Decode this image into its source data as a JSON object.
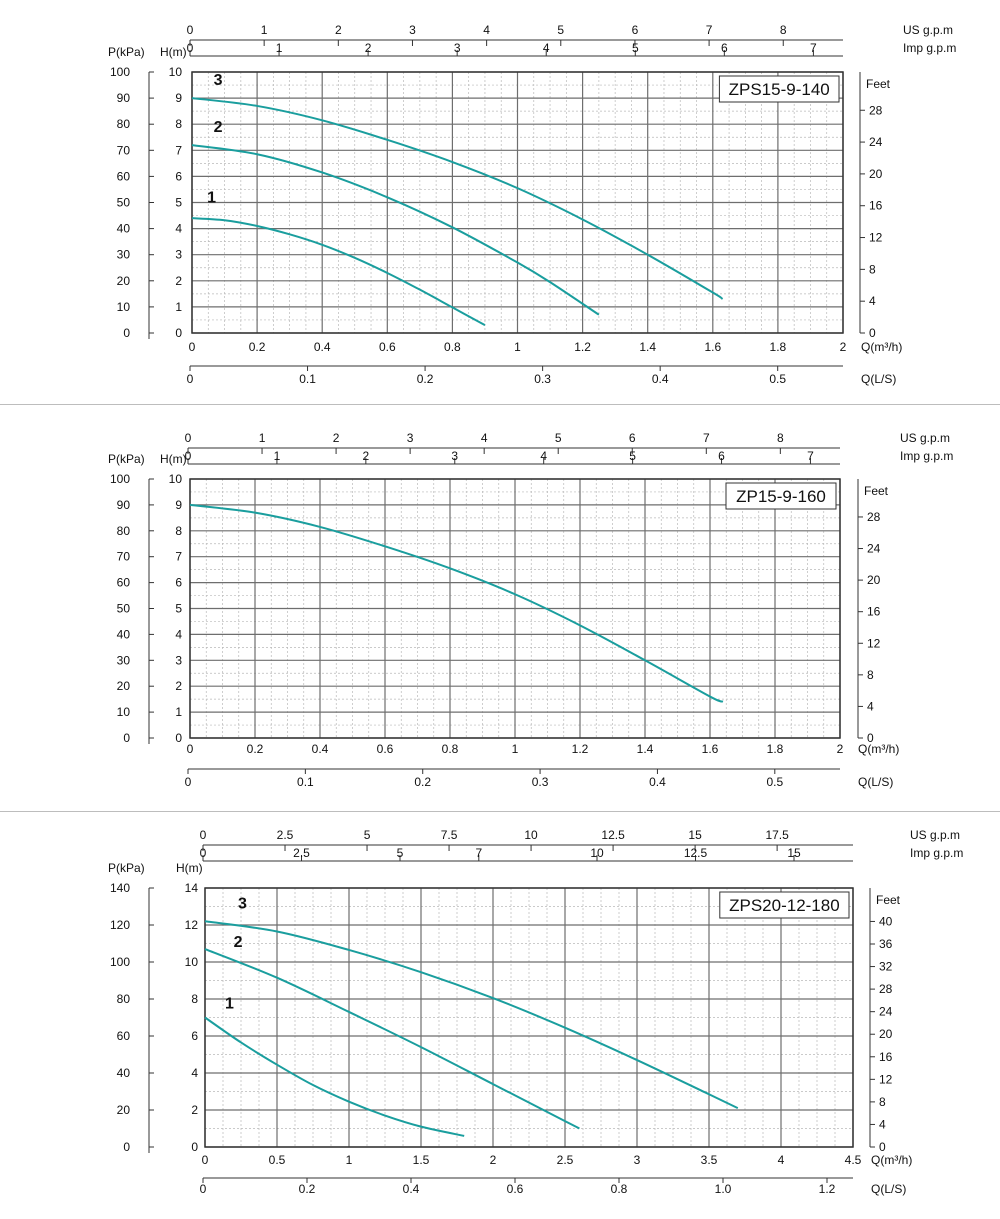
{
  "chart_data": [
    {
      "type": "line",
      "model_label": "ZPS15-9-140",
      "xlabel": "Q(m³/h)",
      "xlim": [
        0,
        2
      ],
      "x_ticks": [
        "0",
        "0.2",
        "0.4",
        "0.6",
        "0.8",
        "1",
        "1.2",
        "1.4",
        "1.6",
        "1.8",
        "2"
      ],
      "ylabel_head": "H(m)",
      "ylim": [
        0,
        10
      ],
      "y_ticks": [
        "0",
        "1",
        "2",
        "3",
        "4",
        "5",
        "6",
        "7",
        "8",
        "9",
        "10"
      ],
      "pressure_label": "P(kPa)",
      "pressure_ticks": [
        "0",
        "10",
        "20",
        "30",
        "40",
        "50",
        "60",
        "70",
        "80",
        "90",
        "100"
      ],
      "feet_label": "Feet",
      "feet_ticks": [
        {
          "label": "0",
          "value": 0
        },
        {
          "label": "4",
          "value": 4
        },
        {
          "label": "8",
          "value": 8
        },
        {
          "label": "12",
          "value": 12
        },
        {
          "label": "16",
          "value": 16
        },
        {
          "label": "20",
          "value": 20
        },
        {
          "label": "24",
          "value": 24
        },
        {
          "label": "28",
          "value": 28
        }
      ],
      "us_label": "US  g.p.m",
      "us_ticks": [
        {
          "label": "0",
          "value": 0
        },
        {
          "label": "1",
          "value": 1
        },
        {
          "label": "2",
          "value": 2
        },
        {
          "label": "3",
          "value": 3
        },
        {
          "label": "4",
          "value": 4
        },
        {
          "label": "5",
          "value": 5
        },
        {
          "label": "6",
          "value": 6
        },
        {
          "label": "7",
          "value": 7
        },
        {
          "label": "8",
          "value": 8
        }
      ],
      "imp_label": "Imp  g.p.m",
      "imp_ticks": [
        {
          "label": "0",
          "value": 0
        },
        {
          "label": "1",
          "value": 1
        },
        {
          "label": "2",
          "value": 2
        },
        {
          "label": "3",
          "value": 3
        },
        {
          "label": "4",
          "value": 4
        },
        {
          "label": "5",
          "value": 5
        },
        {
          "label": "6",
          "value": 6
        },
        {
          "label": "7",
          "value": 7
        }
      ],
      "ls_label": "Q(L/S)",
      "ls_ticks": [
        {
          "label": "0",
          "value": 0
        },
        {
          "label": "0.1",
          "value": 0.1
        },
        {
          "label": "0.2",
          "value": 0.2
        },
        {
          "label": "0.3",
          "value": 0.3
        },
        {
          "label": "0.4",
          "value": 0.4
        },
        {
          "label": "0.5",
          "value": 0.5
        }
      ],
      "series": [
        {
          "name": "1",
          "label_pos": [
            0.06,
            5.0
          ],
          "x": [
            0,
            0.1,
            0.2,
            0.3,
            0.4,
            0.5,
            0.6,
            0.7,
            0.8,
            0.9
          ],
          "y": [
            4.4,
            4.32,
            4.1,
            3.78,
            3.38,
            2.88,
            2.3,
            1.66,
            0.98,
            0.3
          ]
        },
        {
          "name": "2",
          "label_pos": [
            0.08,
            7.7
          ],
          "x": [
            0,
            0.2,
            0.4,
            0.6,
            0.8,
            1.0,
            1.1,
            1.25
          ],
          "y": [
            7.2,
            6.85,
            6.15,
            5.2,
            4.05,
            2.7,
            1.95,
            0.7
          ]
        },
        {
          "name": "3",
          "label_pos": [
            0.08,
            9.5
          ],
          "x": [
            0,
            0.2,
            0.4,
            0.6,
            0.8,
            1.0,
            1.2,
            1.4,
            1.6,
            1.63
          ],
          "y": [
            9.0,
            8.7,
            8.15,
            7.4,
            6.55,
            5.55,
            4.35,
            3.0,
            1.55,
            1.3
          ]
        }
      ]
    },
    {
      "type": "line",
      "model_label": "ZP15-9-160",
      "xlabel": "Q(m³/h)",
      "xlim": [
        0,
        2
      ],
      "x_ticks": [
        "0",
        "0.2",
        "0.4",
        "0.6",
        "0.8",
        "1",
        "1.2",
        "1.4",
        "1.6",
        "1.8",
        "2"
      ],
      "ylabel_head": "H(m)",
      "ylim": [
        0,
        10
      ],
      "y_ticks": [
        "0",
        "1",
        "2",
        "3",
        "4",
        "5",
        "6",
        "7",
        "8",
        "9",
        "10"
      ],
      "pressure_label": "P(kPa)",
      "pressure_ticks": [
        "0",
        "10",
        "20",
        "30",
        "40",
        "50",
        "60",
        "70",
        "80",
        "90",
        "100"
      ],
      "feet_label": "Feet",
      "feet_ticks": [
        {
          "label": "0",
          "value": 0
        },
        {
          "label": "4",
          "value": 4
        },
        {
          "label": "8",
          "value": 8
        },
        {
          "label": "12",
          "value": 12
        },
        {
          "label": "16",
          "value": 16
        },
        {
          "label": "20",
          "value": 20
        },
        {
          "label": "24",
          "value": 24
        },
        {
          "label": "28",
          "value": 28
        }
      ],
      "us_label": "US  g.p.m",
      "us_ticks": [
        {
          "label": "0",
          "value": 0
        },
        {
          "label": "1",
          "value": 1
        },
        {
          "label": "2",
          "value": 2
        },
        {
          "label": "3",
          "value": 3
        },
        {
          "label": "4",
          "value": 4
        },
        {
          "label": "5",
          "value": 5
        },
        {
          "label": "6",
          "value": 6
        },
        {
          "label": "7",
          "value": 7
        },
        {
          "label": "8",
          "value": 8
        }
      ],
      "imp_label": "Imp  g.p.m",
      "imp_ticks": [
        {
          "label": "0",
          "value": 0
        },
        {
          "label": "1",
          "value": 1
        },
        {
          "label": "2",
          "value": 2
        },
        {
          "label": "3",
          "value": 3
        },
        {
          "label": "4",
          "value": 4
        },
        {
          "label": "5",
          "value": 5
        },
        {
          "label": "6",
          "value": 6
        },
        {
          "label": "7",
          "value": 7
        }
      ],
      "ls_label": "Q(L/S)",
      "ls_ticks": [
        {
          "label": "0",
          "value": 0
        },
        {
          "label": "0.1",
          "value": 0.1
        },
        {
          "label": "0.2",
          "value": 0.2
        },
        {
          "label": "0.3",
          "value": 0.3
        },
        {
          "label": "0.4",
          "value": 0.4
        },
        {
          "label": "0.5",
          "value": 0.5
        }
      ],
      "series": [
        {
          "x": [
            0,
            0.2,
            0.4,
            0.6,
            0.8,
            1.0,
            1.2,
            1.4,
            1.6,
            1.64
          ],
          "y": [
            9.0,
            8.7,
            8.15,
            7.4,
            6.55,
            5.55,
            4.35,
            3.0,
            1.6,
            1.4
          ]
        }
      ]
    },
    {
      "type": "line",
      "model_label": "ZPS20-12-180",
      "xlabel": "Q(m³/h)",
      "xlim": [
        0,
        4.5
      ],
      "x_ticks": [
        "0",
        "0.5",
        "1",
        "1.5",
        "2",
        "2.5",
        "3",
        "3.5",
        "4",
        "4.5"
      ],
      "ylabel_head": "H(m)",
      "ylim": [
        0,
        14
      ],
      "y_ticks": [
        "0",
        "2",
        "4",
        "6",
        "8",
        "10",
        "12",
        "14"
      ],
      "pressure_label": "P(kPa)",
      "pressure_ticks": [
        "0",
        "20",
        "40",
        "60",
        "80",
        "100",
        "120",
        "140"
      ],
      "feet_label": "Feet",
      "feet_ticks": [
        {
          "label": "0",
          "value": 0
        },
        {
          "label": "4",
          "value": 4
        },
        {
          "label": "8",
          "value": 8
        },
        {
          "label": "12",
          "value": 12
        },
        {
          "label": "16",
          "value": 16
        },
        {
          "label": "20",
          "value": 20
        },
        {
          "label": "24",
          "value": 24
        },
        {
          "label": "28",
          "value": 28
        },
        {
          "label": "32",
          "value": 32
        },
        {
          "label": "36",
          "value": 36
        },
        {
          "label": "40",
          "value": 40
        }
      ],
      "us_label": "US  g.p.m",
      "us_ticks": [
        {
          "label": "0",
          "value": 0
        },
        {
          "label": "2.5",
          "value": 2.5
        },
        {
          "label": "5",
          "value": 5
        },
        {
          "label": "7.5",
          "value": 7.5
        },
        {
          "label": "10",
          "value": 10
        },
        {
          "label": "12.5",
          "value": 12.5
        },
        {
          "label": "15",
          "value": 15
        },
        {
          "label": "17.5",
          "value": 17.5
        }
      ],
      "imp_label": "Imp  g.p.m",
      "imp_ticks": [
        {
          "label": "0",
          "value": 0
        },
        {
          "label": "2.5",
          "value": 2.5
        },
        {
          "label": "5",
          "value": 5
        },
        {
          "label": "7",
          "value": 7
        },
        {
          "label": "10",
          "value": 10
        },
        {
          "label": "12.5",
          "value": 12.5
        },
        {
          "label": "15",
          "value": 15
        }
      ],
      "ls_label": "Q(L/S)",
      "ls_ticks": [
        {
          "label": "0",
          "value": 0
        },
        {
          "label": "0.2",
          "value": 0.2
        },
        {
          "label": "0.4",
          "value": 0.4
        },
        {
          "label": "0.6",
          "value": 0.6
        },
        {
          "label": "0.8",
          "value": 0.8
        },
        {
          "label": "1.0",
          "value": 1.0
        },
        {
          "label": "1.2",
          "value": 1.2
        }
      ],
      "series": [
        {
          "name": "1",
          "label_pos": [
            0.17,
            7.5
          ],
          "x": [
            0,
            0.25,
            0.5,
            0.75,
            1.0,
            1.25,
            1.5,
            1.8
          ],
          "y": [
            7.0,
            5.65,
            4.45,
            3.35,
            2.45,
            1.7,
            1.1,
            0.6
          ]
        },
        {
          "name": "2",
          "label_pos": [
            0.23,
            10.8
          ],
          "x": [
            0,
            0.5,
            1.0,
            1.5,
            2.0,
            2.5,
            2.6
          ],
          "y": [
            10.7,
            9.15,
            7.3,
            5.4,
            3.4,
            1.4,
            1.0
          ]
        },
        {
          "name": "3",
          "label_pos": [
            0.26,
            12.9
          ],
          "x": [
            0,
            0.5,
            1.0,
            1.5,
            2.0,
            2.5,
            3.0,
            3.5,
            3.7
          ],
          "y": [
            12.2,
            11.65,
            10.65,
            9.45,
            8.05,
            6.45,
            4.7,
            2.85,
            2.1
          ]
        }
      ]
    }
  ],
  "colors": {
    "curve": "#1a9e9e",
    "grid_major": "#6e6e6e",
    "grid_minor": "#b9b9b9",
    "axis": "#333333",
    "separator": "#bdbdbd"
  }
}
